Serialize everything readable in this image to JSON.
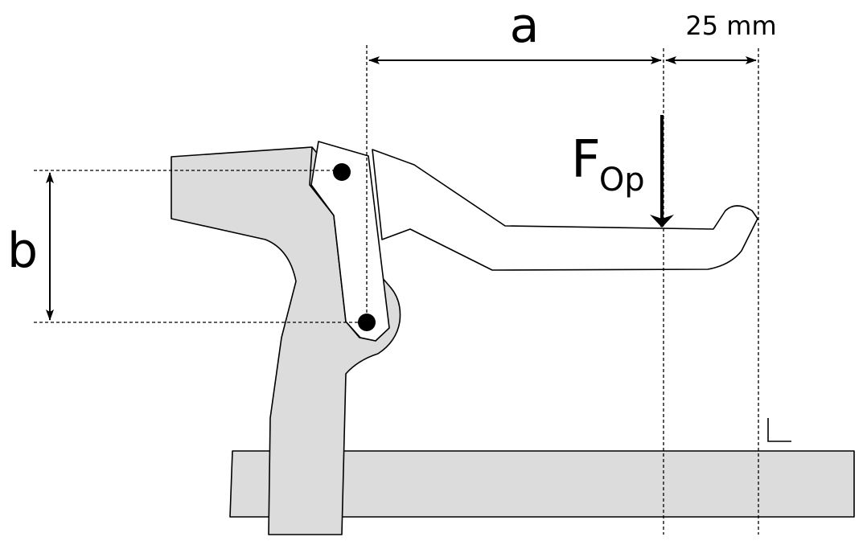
{
  "labels": {
    "a": "a",
    "b": "b",
    "dim_25": "25 mm",
    "force_main": "F",
    "force_sub": "Op"
  },
  "colors": {
    "part_fill": "#dcdcdc",
    "line": "#000000",
    "background": "#ffffff"
  },
  "icons": {
    "pivot_points": "filled-circle",
    "right_angle_marker": "corner-mark"
  }
}
